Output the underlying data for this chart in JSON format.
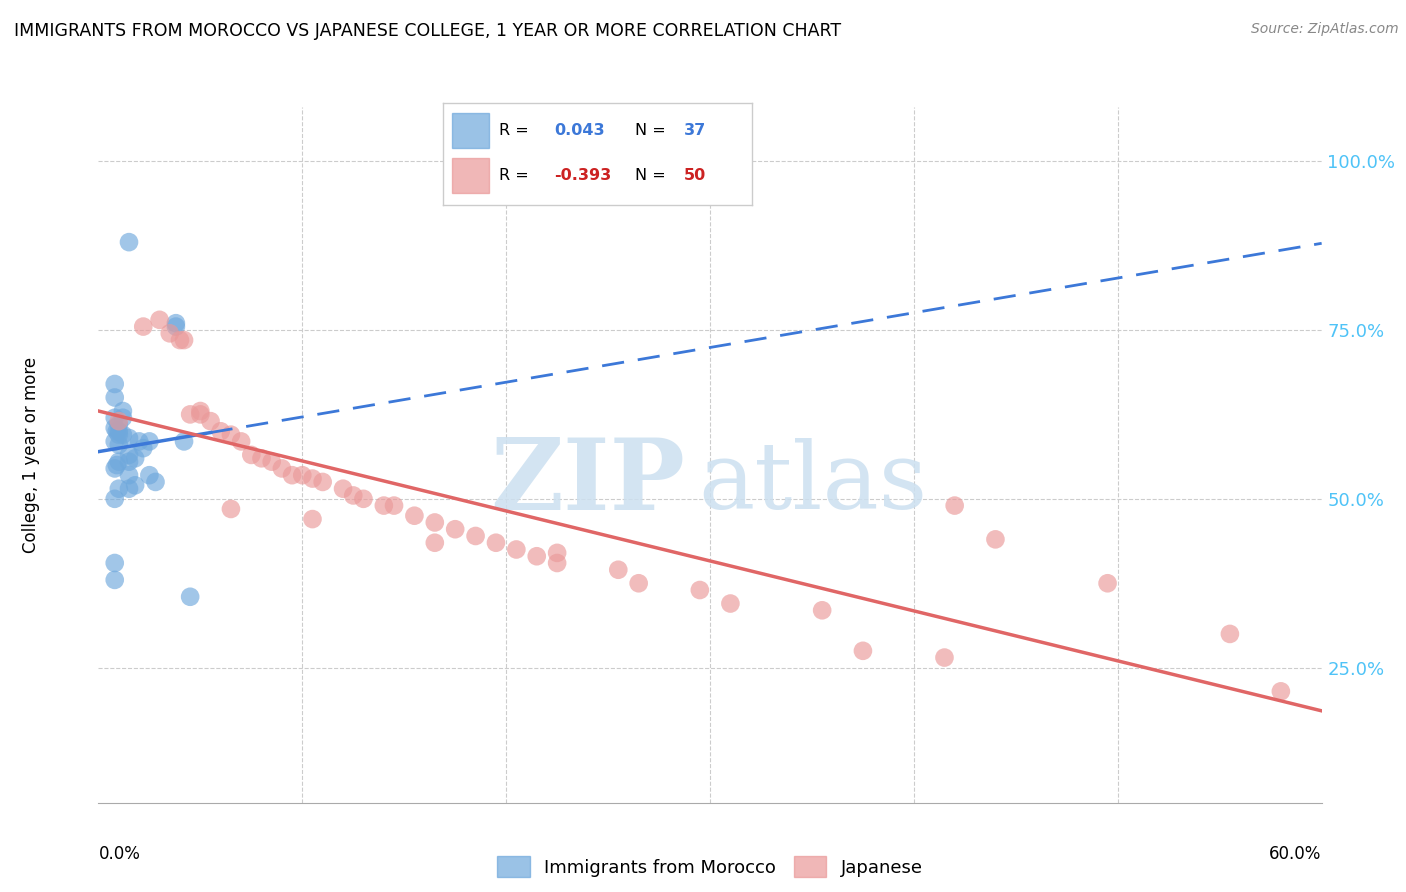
{
  "title": "IMMIGRANTS FROM MOROCCO VS JAPANESE COLLEGE, 1 YEAR OR MORE CORRELATION CHART",
  "source": "Source: ZipAtlas.com",
  "ylabel": "College, 1 year or more",
  "ytick_labels": [
    "25.0%",
    "50.0%",
    "75.0%",
    "100.0%"
  ],
  "ytick_values": [
    0.25,
    0.5,
    0.75,
    1.0
  ],
  "xlim": [
    0.0,
    0.6
  ],
  "ylim": [
    0.05,
    1.08
  ],
  "legend_r_morocco": "0.043",
  "legend_n_morocco": "37",
  "legend_r_japanese": "-0.393",
  "legend_n_japanese": "50",
  "morocco_color": "#6fa8dc",
  "japanese_color": "#ea9999",
  "morocco_line_solid_color": "#3c78d8",
  "japanese_line_color": "#e06666",
  "morocco_x": [
    0.015,
    0.038,
    0.008,
    0.008,
    0.012,
    0.012,
    0.008,
    0.01,
    0.008,
    0.009,
    0.01,
    0.012,
    0.015,
    0.008,
    0.01,
    0.02,
    0.022,
    0.015,
    0.018,
    0.01,
    0.009,
    0.008,
    0.015,
    0.025,
    0.028,
    0.018,
    0.01,
    0.008,
    0.038,
    0.015,
    0.01,
    0.008,
    0.008,
    0.025,
    0.015,
    0.045,
    0.042
  ],
  "morocco_y": [
    0.88,
    0.76,
    0.67,
    0.65,
    0.63,
    0.62,
    0.62,
    0.61,
    0.605,
    0.6,
    0.6,
    0.595,
    0.59,
    0.585,
    0.58,
    0.585,
    0.575,
    0.565,
    0.56,
    0.555,
    0.55,
    0.545,
    0.535,
    0.535,
    0.525,
    0.52,
    0.515,
    0.5,
    0.755,
    0.515,
    0.595,
    0.405,
    0.38,
    0.585,
    0.555,
    0.355,
    0.585
  ],
  "japanese_x": [
    0.01,
    0.022,
    0.03,
    0.035,
    0.04,
    0.042,
    0.045,
    0.05,
    0.055,
    0.06,
    0.065,
    0.07,
    0.075,
    0.08,
    0.085,
    0.09,
    0.095,
    0.1,
    0.105,
    0.11,
    0.12,
    0.125,
    0.13,
    0.14,
    0.145,
    0.155,
    0.165,
    0.175,
    0.185,
    0.195,
    0.205,
    0.215,
    0.225,
    0.255,
    0.265,
    0.295,
    0.31,
    0.355,
    0.375,
    0.415,
    0.05,
    0.065,
    0.105,
    0.165,
    0.225,
    0.42,
    0.44,
    0.495,
    0.555,
    0.58
  ],
  "japanese_y": [
    0.615,
    0.755,
    0.765,
    0.745,
    0.735,
    0.735,
    0.625,
    0.625,
    0.615,
    0.6,
    0.595,
    0.585,
    0.565,
    0.56,
    0.555,
    0.545,
    0.535,
    0.535,
    0.53,
    0.525,
    0.515,
    0.505,
    0.5,
    0.49,
    0.49,
    0.475,
    0.465,
    0.455,
    0.445,
    0.435,
    0.425,
    0.415,
    0.405,
    0.395,
    0.375,
    0.365,
    0.345,
    0.335,
    0.275,
    0.265,
    0.63,
    0.485,
    0.47,
    0.435,
    0.42,
    0.49,
    0.44,
    0.375,
    0.3,
    0.215
  ],
  "grid_color": "#cccccc",
  "right_tick_color": "#4fc3f7",
  "watermark_color_zip": "#d0e0f0",
  "watermark_color_atlas": "#c8d8e8"
}
